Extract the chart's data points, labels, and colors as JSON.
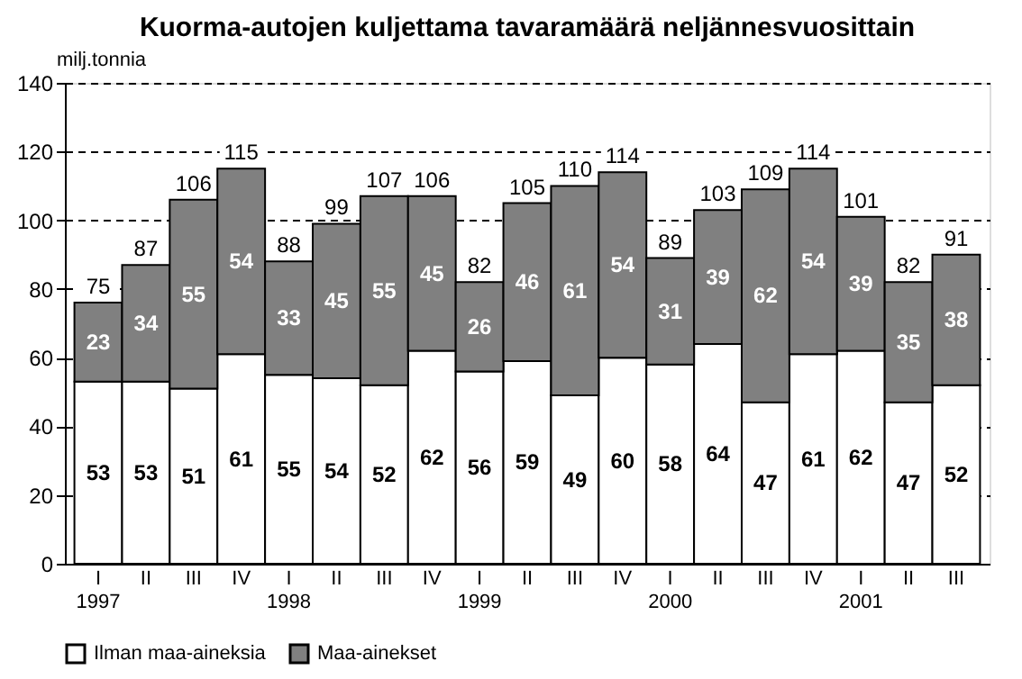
{
  "chart_data": {
    "type": "bar",
    "title": "Kuorma-autojen kuljettama tavaramäärä neljännesvuosittain",
    "ylabel": "milj.tonnia",
    "categories": [
      "I\n1997",
      "II",
      "III",
      "IV",
      "I\n1998",
      "II",
      "III",
      "IV",
      "I\n1999",
      "II",
      "III",
      "IV",
      "I\n2000",
      "II",
      "III",
      "IV",
      "I\n2001",
      "II",
      "III"
    ],
    "stacked": true,
    "series": [
      {
        "name": "Ilman maa-aineksia",
        "color": "#ffffff",
        "values": [
          53,
          53,
          51,
          61,
          55,
          54,
          52,
          62,
          56,
          59,
          49,
          60,
          58,
          64,
          47,
          61,
          62,
          47,
          52
        ]
      },
      {
        "name": "Maa-ainekset",
        "color": "#808080",
        "values": [
          23,
          34,
          55,
          54,
          33,
          45,
          55,
          45,
          26,
          46,
          61,
          54,
          31,
          39,
          62,
          54,
          39,
          35,
          38
        ]
      }
    ],
    "totals": [
      "75",
      "87",
      "106",
      "115",
      "88",
      "99",
      "107",
      "106",
      "82",
      "105",
      "110",
      "114",
      "89",
      "103",
      "109",
      "114",
      "101",
      "82",
      "91"
    ],
    "data_labels": true,
    "ylim": [
      0,
      140
    ],
    "yticks": [
      0,
      20,
      40,
      60,
      80,
      100,
      120,
      140
    ],
    "grid": "y",
    "legend": "bottom"
  }
}
